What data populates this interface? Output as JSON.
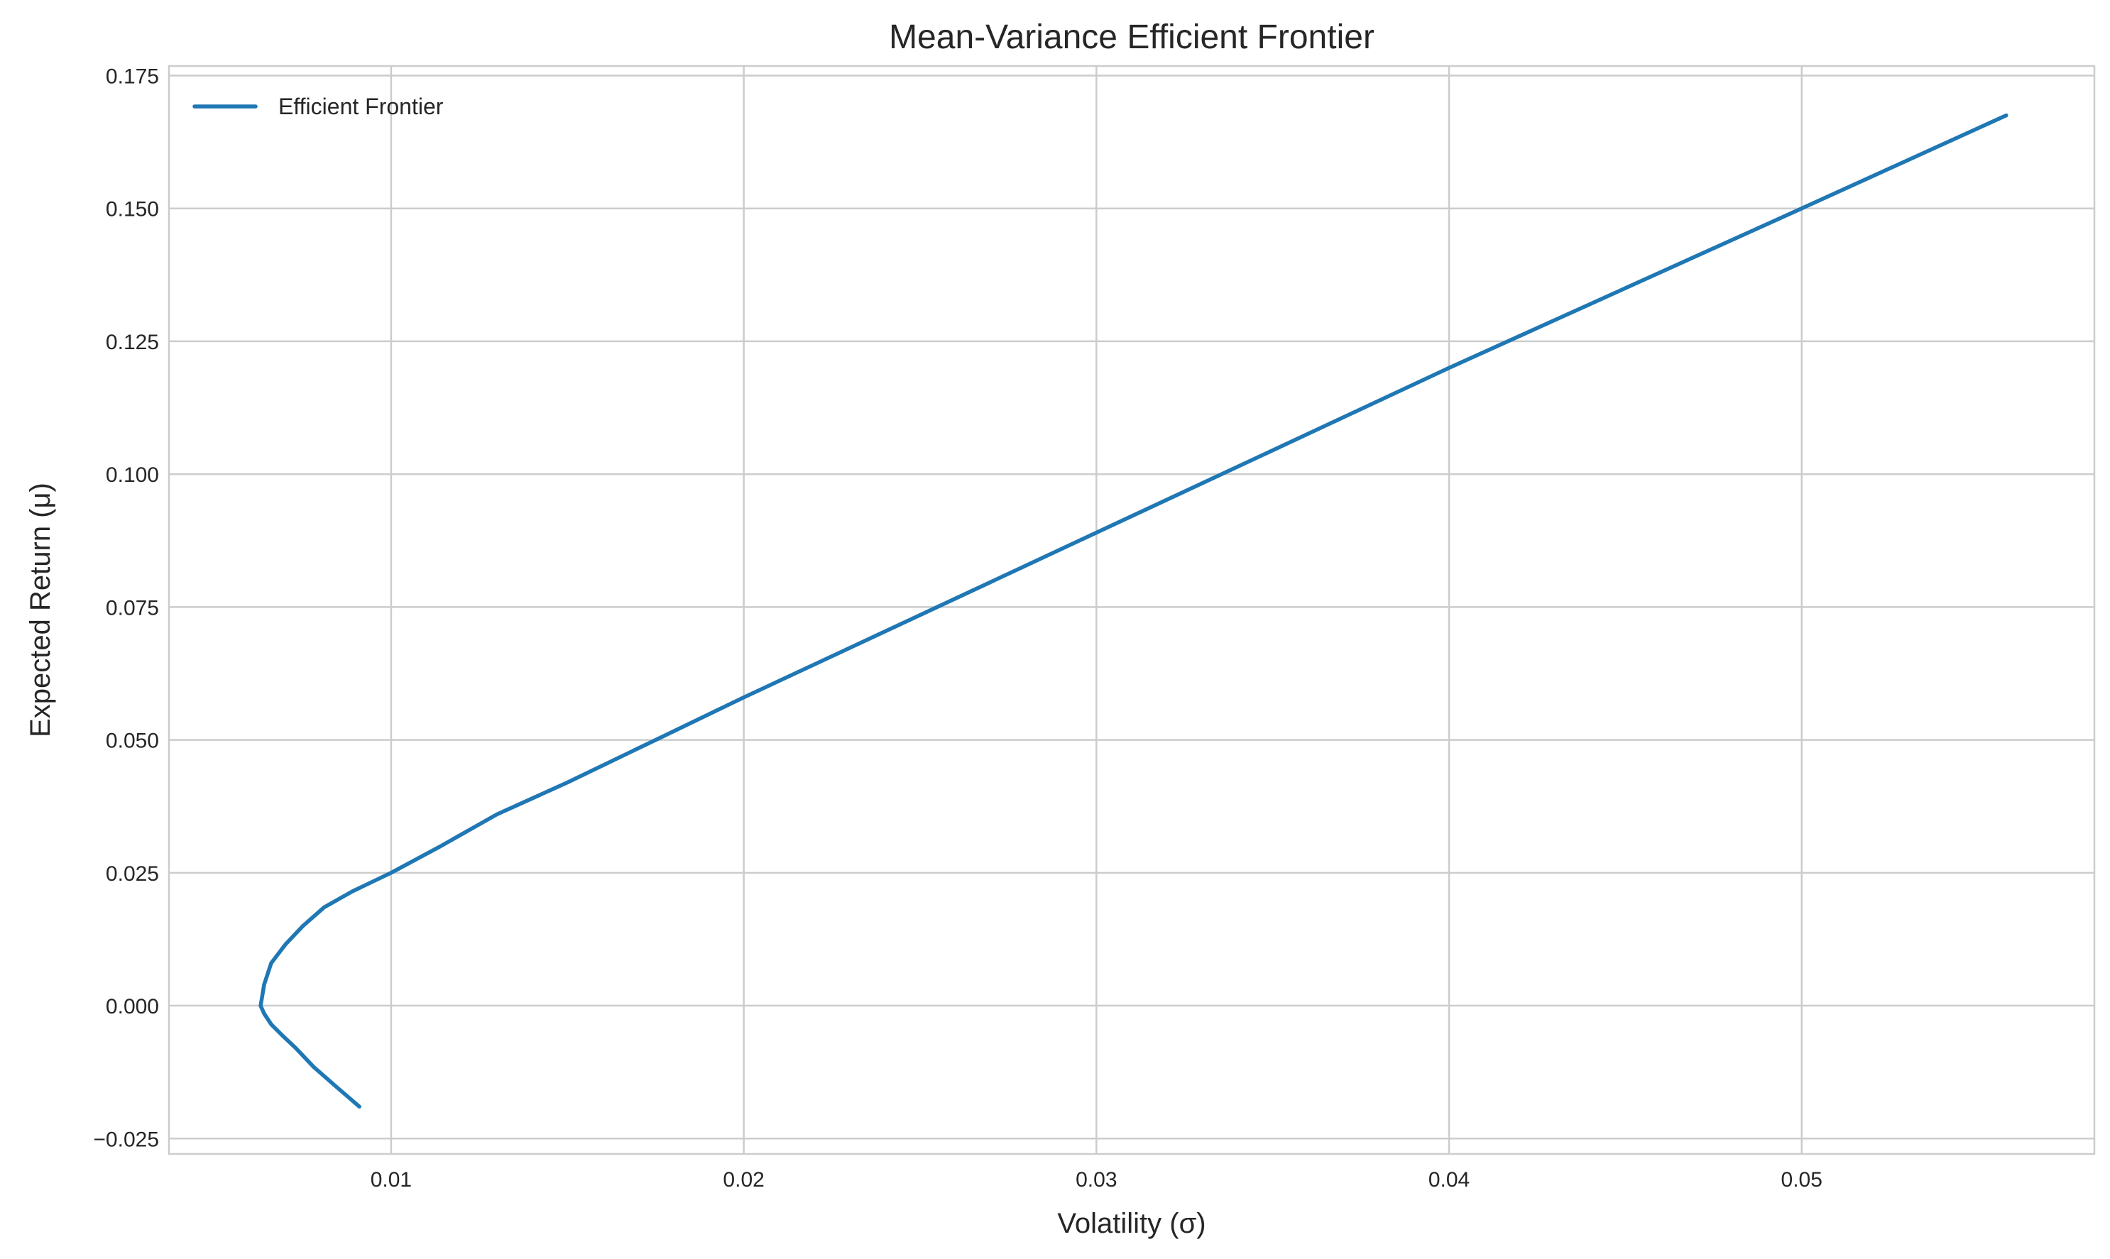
{
  "chart_data": {
    "type": "line",
    "title": "Mean-Variance Efficient Frontier",
    "xlabel": "Volatility (σ)",
    "ylabel": "Expected Return (μ)",
    "xlim": [
      0.0037,
      0.0583
    ],
    "ylim": [
      -0.0279,
      0.1768
    ],
    "xticks": [
      0.01,
      0.02,
      0.03,
      0.04,
      0.05
    ],
    "xtick_labels": [
      "0.01",
      "0.02",
      "0.03",
      "0.04",
      "0.05"
    ],
    "yticks": [
      -0.025,
      0,
      0.025,
      0.05,
      0.075,
      0.1,
      0.125,
      0.15,
      0.175
    ],
    "ytick_labels": [
      "−0.025",
      "0.000",
      "0.025",
      "0.050",
      "0.075",
      "0.100",
      "0.125",
      "0.150",
      "0.175"
    ],
    "grid": true,
    "legend_position": "top-left",
    "series": [
      {
        "name": "Efficient Frontier",
        "color": "#1f77b4",
        "x": [
          0.0091,
          0.0084,
          0.0078,
          0.0073,
          0.0069,
          0.0066,
          0.0064,
          0.0063,
          0.0064,
          0.0066,
          0.007,
          0.0075,
          0.0081,
          0.0089,
          0.01,
          0.0114,
          0.013,
          0.015,
          0.0175,
          0.02,
          0.025,
          0.03,
          0.035,
          0.04,
          0.045,
          0.05,
          0.0558
        ],
        "y": [
          -0.019,
          -0.015,
          -0.0115,
          -0.008,
          -0.0055,
          -0.0035,
          -0.0015,
          0.0,
          0.004,
          0.008,
          0.0115,
          0.015,
          0.0185,
          0.0215,
          0.025,
          0.03,
          0.036,
          0.042,
          0.05,
          0.058,
          0.0735,
          0.089,
          0.1045,
          0.12,
          0.135,
          0.15,
          0.1675
        ]
      }
    ]
  }
}
